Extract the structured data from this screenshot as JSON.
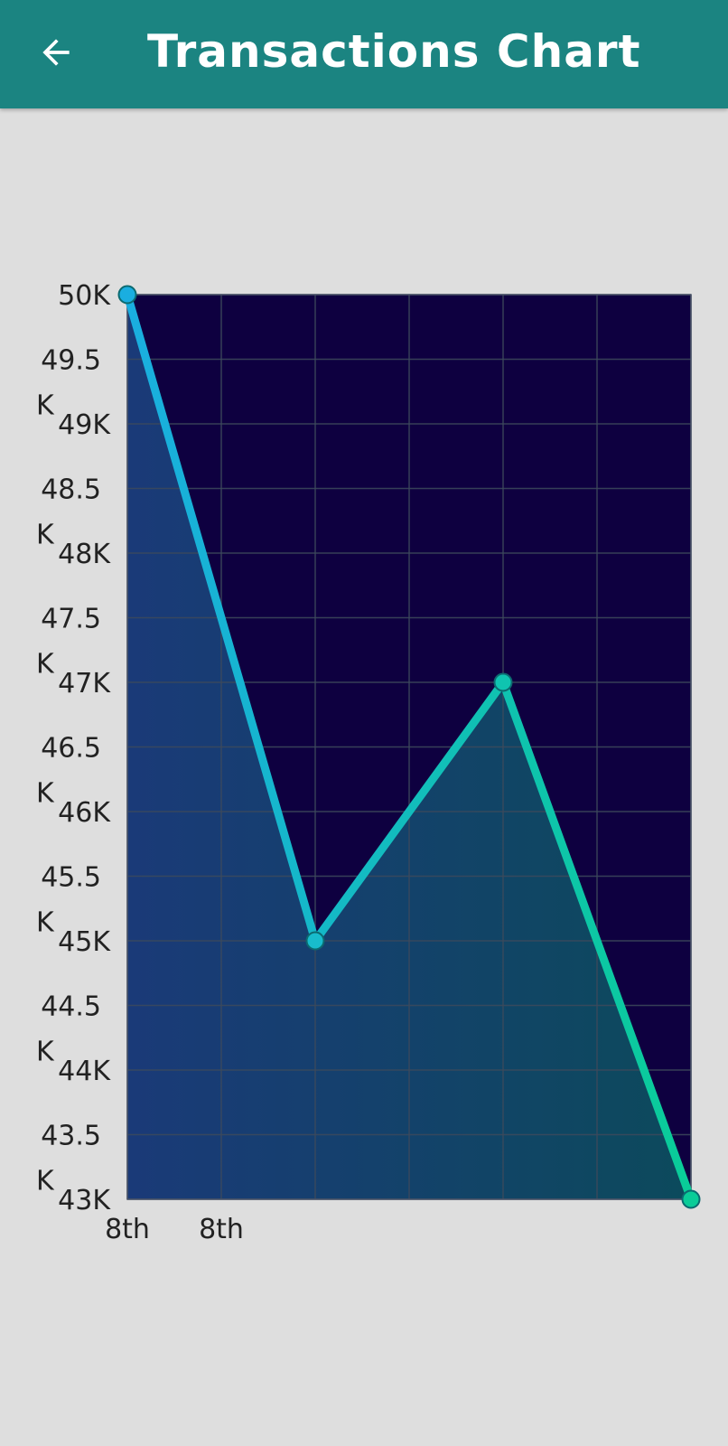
{
  "app_bar": {
    "title": "Transactions Chart",
    "back_icon": "arrow-left-icon",
    "background_color": "#1b8481"
  },
  "chart_data": {
    "type": "line",
    "title": "",
    "xlabel": "",
    "ylabel": "",
    "ylim": [
      43000,
      50000
    ],
    "y_tick_step": 500,
    "y_tick_labels": [
      "43K",
      "43.5 K",
      "44K",
      "44.5 K",
      "45K",
      "45.5 K",
      "46K",
      "46.5 K",
      "47K",
      "47.5 K",
      "48K",
      "48.5 K",
      "49K",
      "49.5 K",
      "50K"
    ],
    "x_tick_labels": [
      "8th",
      "8th"
    ],
    "x_gridlines": 6,
    "grid": true,
    "series": [
      {
        "values": [
          50000,
          45000,
          47000,
          43000
        ],
        "x_index": [
          0,
          2,
          4,
          6
        ]
      }
    ],
    "colors": {
      "plot_background": "#0e0040",
      "line_start": "#1aaee0",
      "line_end": "#0acc98",
      "grid": "#3d4a5c",
      "axis_text": "#222222"
    }
  }
}
